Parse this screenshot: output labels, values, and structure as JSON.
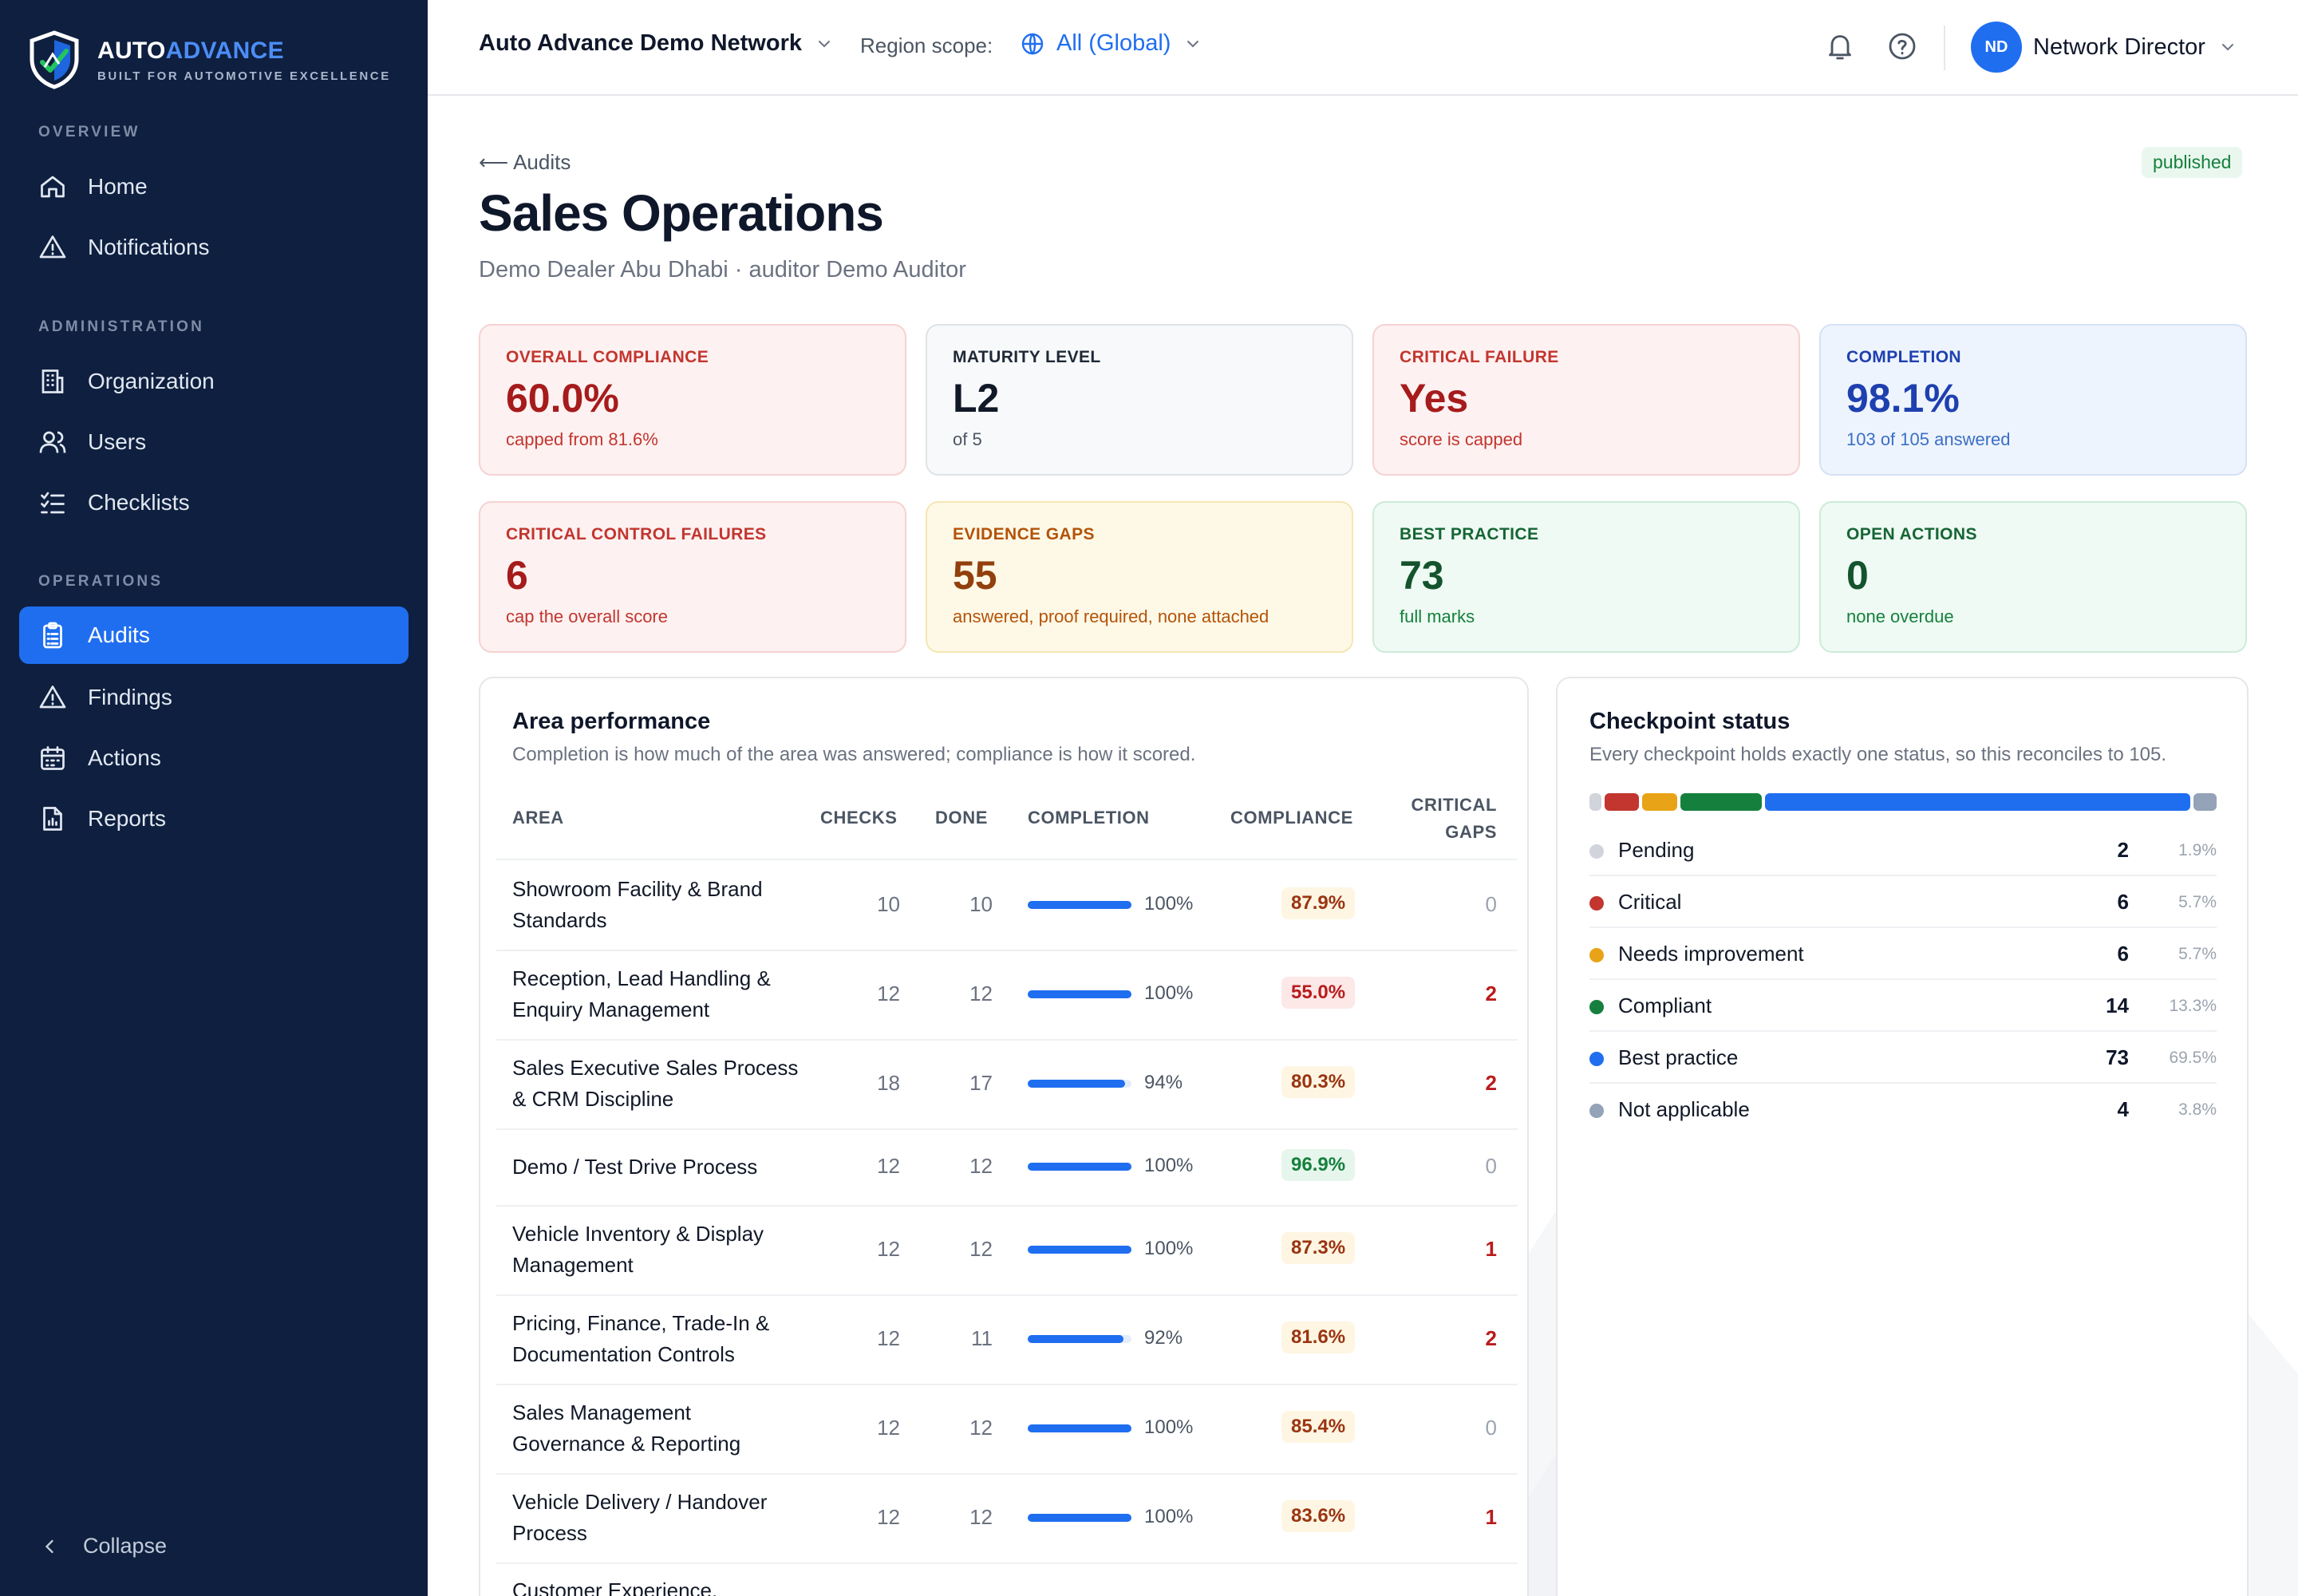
{
  "brand": {
    "name_a": "AUTO",
    "name_b": "ADVANCE",
    "tagline": "BUILT FOR AUTOMOTIVE EXCELLENCE"
  },
  "sidebar": {
    "sections": {
      "overview": "OVERVIEW",
      "administration": "ADMINISTRATION",
      "operations": "OPERATIONS"
    },
    "items": [
      {
        "label": "Home",
        "icon": "home-icon"
      },
      {
        "label": "Notifications",
        "icon": "alert-triangle-icon"
      },
      {
        "label": "Organization",
        "icon": "building-icon"
      },
      {
        "label": "Users",
        "icon": "users-icon"
      },
      {
        "label": "Checklists",
        "icon": "checklist-icon"
      },
      {
        "label": "Audits",
        "icon": "clipboard-icon",
        "active": true
      },
      {
        "label": "Findings",
        "icon": "alert-triangle-icon"
      },
      {
        "label": "Actions",
        "icon": "calendar-icon"
      },
      {
        "label": "Reports",
        "icon": "report-icon"
      }
    ],
    "collapse_label": "Collapse"
  },
  "topbar": {
    "network": "Auto Advance Demo Network",
    "region_label": "Region scope:",
    "region_value": "All (Global)",
    "user_initials": "ND",
    "user_name": "Network Director"
  },
  "page": {
    "back_label": "⟵ Audits",
    "status": "published",
    "title": "Sales Operations",
    "subtitle": "Demo Dealer Abu Dhabi · auditor Demo Auditor"
  },
  "kpis": [
    {
      "label": "OVERALL COMPLIANCE",
      "value": "60.0%",
      "note": "capped from 81.6%",
      "tone": "red"
    },
    {
      "label": "MATURITY LEVEL",
      "value": "L2",
      "note": "of 5",
      "tone": "gray"
    },
    {
      "label": "CRITICAL FAILURE",
      "value": "Yes",
      "note": "score is capped",
      "tone": "red"
    },
    {
      "label": "COMPLETION",
      "value": "98.1%",
      "note": "103 of 105 answered",
      "tone": "blue"
    },
    {
      "label": "CRITICAL CONTROL FAILURES",
      "value": "6",
      "note": "cap the overall score",
      "tone": "red"
    },
    {
      "label": "EVIDENCE GAPS",
      "value": "55",
      "note": "answered, proof required, none attached",
      "tone": "amber"
    },
    {
      "label": "BEST PRACTICE",
      "value": "73",
      "note": "full marks",
      "tone": "green"
    },
    {
      "label": "OPEN ACTIONS",
      "value": "0",
      "note": "none overdue",
      "tone": "green"
    }
  ],
  "area_performance": {
    "title": "Area performance",
    "subtitle": "Completion is how much of the area was answered; compliance is how it scored.",
    "columns": {
      "area": "AREA",
      "checks": "CHECKS",
      "done": "DONE",
      "completion": "COMPLETION",
      "compliance": "COMPLIANCE",
      "critical": "CRITICAL",
      "gaps": "GAPS"
    },
    "rows": [
      {
        "area": "Showroom Facility & Brand Standards",
        "checks": "10",
        "done": "10",
        "completion": 100,
        "completion_label": "100%",
        "compliance": "87.9%",
        "tone": "amber",
        "critical_gaps": "0"
      },
      {
        "area": "Reception, Lead Handling & Enquiry Management",
        "checks": "12",
        "done": "12",
        "completion": 100,
        "completion_label": "100%",
        "compliance": "55.0%",
        "tone": "red",
        "critical_gaps": "2"
      },
      {
        "area": "Sales Executive Sales Process & CRM Discipline",
        "checks": "18",
        "done": "17",
        "completion": 94,
        "completion_label": "94%",
        "compliance": "80.3%",
        "tone": "amber",
        "critical_gaps": "2"
      },
      {
        "area": "Demo / Test Drive Process",
        "checks": "12",
        "done": "12",
        "completion": 100,
        "completion_label": "100%",
        "compliance": "96.9%",
        "tone": "green",
        "critical_gaps": "0"
      },
      {
        "area": "Vehicle Inventory & Display Management",
        "checks": "12",
        "done": "12",
        "completion": 100,
        "completion_label": "100%",
        "compliance": "87.3%",
        "tone": "amber",
        "critical_gaps": "1"
      },
      {
        "area": "Pricing, Finance, Trade-In & Documentation Controls",
        "checks": "12",
        "done": "11",
        "completion": 92,
        "completion_label": "92%",
        "compliance": "81.6%",
        "tone": "amber",
        "critical_gaps": "2"
      },
      {
        "area": "Sales Management Governance & Reporting",
        "checks": "12",
        "done": "12",
        "completion": 100,
        "completion_label": "100%",
        "compliance": "85.4%",
        "tone": "amber",
        "critical_gaps": "0"
      },
      {
        "area": "Vehicle Delivery / Handover Process",
        "checks": "12",
        "done": "12",
        "completion": 100,
        "completion_label": "100%",
        "compliance": "83.6%",
        "tone": "amber",
        "critical_gaps": "1"
      },
      {
        "area": "Customer Experience,",
        "checks": "",
        "done": "",
        "completion": null,
        "completion_label": "",
        "compliance": "",
        "tone": "amber",
        "critical_gaps": ""
      }
    ]
  },
  "checkpoint_status": {
    "title": "Checkpoint status",
    "subtitle": "Every checkpoint holds exactly one status, so this reconciles to 105.",
    "total": 105,
    "items": [
      {
        "label": "Pending",
        "count": 2,
        "pct": "1.9%",
        "color": "#d1d5db"
      },
      {
        "label": "Critical",
        "count": 6,
        "pct": "5.7%",
        "color": "#c2362f"
      },
      {
        "label": "Needs improvement",
        "count": 6,
        "pct": "5.7%",
        "color": "#e8a317"
      },
      {
        "label": "Compliant",
        "count": 14,
        "pct": "13.3%",
        "color": "#15803d"
      },
      {
        "label": "Best practice",
        "count": 73,
        "pct": "69.5%",
        "color": "#1f6ef0"
      },
      {
        "label": "Not applicable",
        "count": 4,
        "pct": "3.8%",
        "color": "#94a3b8"
      }
    ]
  }
}
